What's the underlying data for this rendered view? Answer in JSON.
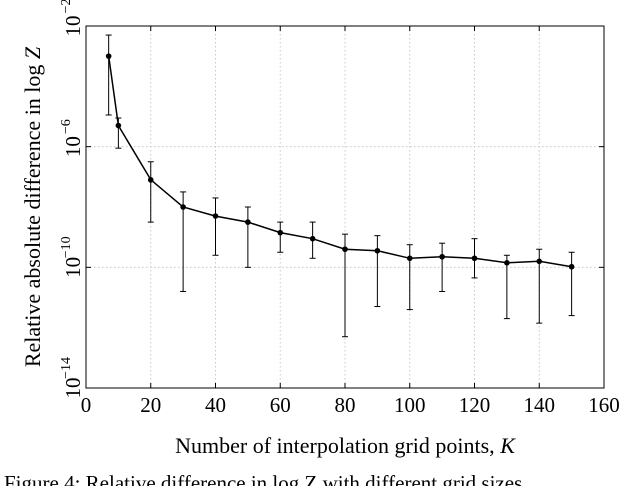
{
  "chart_data": {
    "type": "line",
    "xlabel_text": "Number of interpolation grid points, ",
    "xlabel_var": "K",
    "ylabel_text": "Relative absolute difference in log ",
    "ylabel_var": "Z",
    "xlim": [
      0,
      160
    ],
    "ylim_log10": [
      -14,
      -2
    ],
    "yscale": "log",
    "grid": true,
    "x_ticks": [
      0,
      20,
      40,
      60,
      80,
      100,
      120,
      140,
      160
    ],
    "y_ticks": [
      {
        "base": "10",
        "exp": "−2"
      },
      {
        "base": "10",
        "exp": "−6"
      },
      {
        "base": "10",
        "exp": "−10"
      },
      {
        "base": "10",
        "exp": "−14"
      }
    ],
    "x": [
      7,
      10,
      20,
      30,
      40,
      50,
      60,
      70,
      80,
      90,
      100,
      110,
      120,
      130,
      140,
      150
    ],
    "y_log10": [
      -3.0,
      -5.3,
      -7.1,
      -8.0,
      -8.3,
      -8.5,
      -8.85,
      -9.05,
      -9.4,
      -9.45,
      -9.7,
      -9.65,
      -9.7,
      -9.85,
      -9.8,
      -9.98
    ],
    "y_err_low_log10": [
      -4.95,
      -6.05,
      -8.5,
      -10.8,
      -9.6,
      -10.0,
      -9.5,
      -9.7,
      -12.3,
      -11.3,
      -11.4,
      -10.8,
      -10.35,
      -11.7,
      -11.85,
      -11.6
    ],
    "y_err_high_log10": [
      -2.3,
      -5.05,
      -6.5,
      -7.5,
      -7.7,
      -8.0,
      -8.5,
      -8.5,
      -8.9,
      -8.95,
      -9.25,
      -9.2,
      -9.05,
      -9.6,
      -9.4,
      -9.5
    ]
  },
  "caption_fragment": "Figure 4: Relative difference in log Z with different grid sizes"
}
